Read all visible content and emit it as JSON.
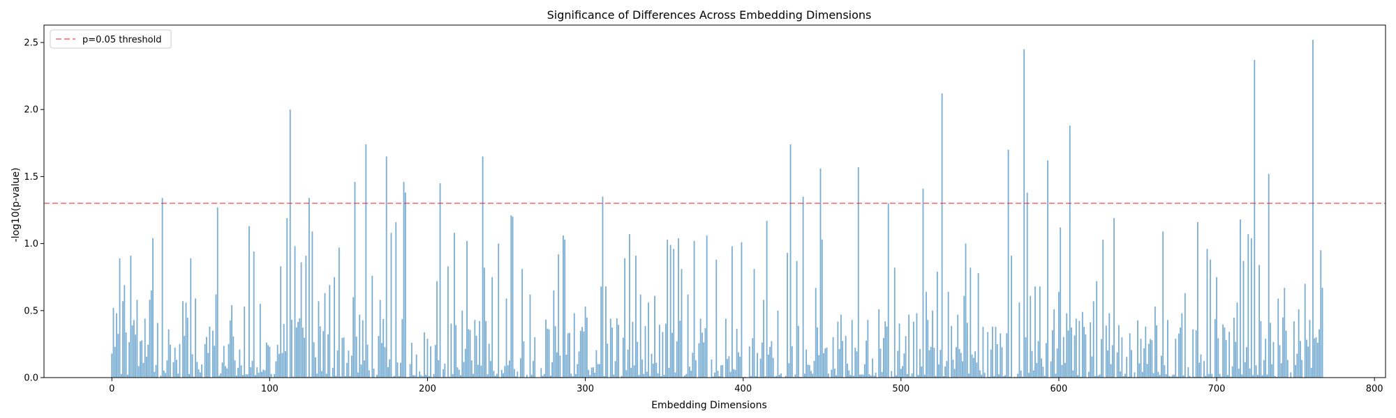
{
  "chart_data": {
    "type": "bar",
    "title": "Significance of Differences Across Embedding Dimensions",
    "xlabel": "Embedding Dimensions",
    "ylabel": "-log10(p-value)",
    "xlim": [
      -43,
      807
    ],
    "ylim": [
      0,
      2.63
    ],
    "xticks": [
      0,
      100,
      200,
      300,
      400,
      500,
      600,
      700,
      800
    ],
    "yticks": [
      0.0,
      0.5,
      1.0,
      1.5,
      2.0,
      2.5
    ],
    "bar_color": "#1f77b4",
    "bar_alpha": 0.6,
    "threshold": {
      "value": 1.30103,
      "label": "p=0.05 threshold",
      "color": "#ff0000",
      "alpha": 0.6,
      "style": "dashed"
    },
    "legend_position": "upper-left",
    "peaks": [
      [
        0,
        0.18
      ],
      [
        1,
        0.52
      ],
      [
        3,
        0.48
      ],
      [
        5,
        0.89
      ],
      [
        7,
        0.57
      ],
      [
        8,
        0.69
      ],
      [
        12,
        0.91
      ],
      [
        14,
        0.43
      ],
      [
        16,
        0.58
      ],
      [
        18,
        0.27
      ],
      [
        21,
        0.44
      ],
      [
        24,
        0.58
      ],
      [
        25,
        0.65
      ],
      [
        26,
        1.04
      ],
      [
        32,
        1.34
      ],
      [
        36,
        0.36
      ],
      [
        43,
        0.25
      ],
      [
        45,
        0.57
      ],
      [
        47,
        0.56
      ],
      [
        50,
        0.89
      ],
      [
        53,
        0.59
      ],
      [
        62,
        0.38
      ],
      [
        64,
        0.35
      ],
      [
        66,
        0.62
      ],
      [
        67,
        1.27
      ],
      [
        74,
        0.25
      ],
      [
        76,
        0.54
      ],
      [
        81,
        0.21
      ],
      [
        84,
        0.53
      ],
      [
        87,
        1.13
      ],
      [
        90,
        0.94
      ],
      [
        94,
        0.55
      ],
      [
        100,
        0.23
      ],
      [
        107,
        0.83
      ],
      [
        111,
        1.19
      ],
      [
        113,
        2.0
      ],
      [
        116,
        0.98
      ],
      [
        120,
        0.86
      ],
      [
        123,
        0.91
      ],
      [
        125,
        1.34
      ],
      [
        127,
        1.09
      ],
      [
        131,
        0.57
      ],
      [
        135,
        0.63
      ],
      [
        138,
        0.69
      ],
      [
        141,
        0.75
      ],
      [
        144,
        0.97
      ],
      [
        147,
        0.3
      ],
      [
        153,
        0.6
      ],
      [
        154,
        1.46
      ],
      [
        157,
        0.47
      ],
      [
        161,
        1.74
      ],
      [
        165,
        0.76
      ],
      [
        170,
        0.58
      ],
      [
        174,
        1.65
      ],
      [
        177,
        1.08
      ],
      [
        180,
        1.16
      ],
      [
        185,
        1.46
      ],
      [
        186,
        1.38
      ],
      [
        190,
        0.26
      ],
      [
        200,
        0.29
      ],
      [
        206,
        0.72
      ],
      [
        208,
        1.45
      ],
      [
        213,
        0.83
      ],
      [
        217,
        1.08
      ],
      [
        222,
        0.5
      ],
      [
        225,
        1.02
      ],
      [
        230,
        0.43
      ],
      [
        235,
        1.65
      ],
      [
        236,
        0.82
      ],
      [
        241,
        0.75
      ],
      [
        245,
        1.0
      ],
      [
        250,
        0.59
      ],
      [
        253,
        1.21
      ],
      [
        254,
        1.2
      ],
      [
        260,
        0.81
      ],
      [
        265,
        0.62
      ],
      [
        280,
        0.65
      ],
      [
        283,
        0.92
      ],
      [
        286,
        1.06
      ],
      [
        287,
        1.03
      ],
      [
        293,
        0.48
      ],
      [
        300,
        0.53
      ],
      [
        310,
        0.68
      ],
      [
        311,
        1.35
      ],
      [
        313,
        0.68
      ],
      [
        316,
        0.44
      ],
      [
        325,
        0.89
      ],
      [
        328,
        1.07
      ],
      [
        332,
        0.91
      ],
      [
        335,
        0.62
      ],
      [
        340,
        0.56
      ],
      [
        344,
        0.61
      ],
      [
        352,
        1.03
      ],
      [
        354,
        0.99
      ],
      [
        356,
        0.96
      ],
      [
        359,
        1.04
      ],
      [
        361,
        0.81
      ],
      [
        365,
        0.62
      ],
      [
        369,
        1.02
      ],
      [
        373,
        0.44
      ],
      [
        377,
        1.06
      ],
      [
        383,
        0.88
      ],
      [
        389,
        0.44
      ],
      [
        393,
        0.98
      ],
      [
        399,
        1.01
      ],
      [
        407,
        0.81
      ],
      [
        413,
        0.58
      ],
      [
        415,
        1.17
      ],
      [
        422,
        0.5
      ],
      [
        428,
        0.93
      ],
      [
        430,
        1.74
      ],
      [
        434,
        0.87
      ],
      [
        438,
        1.35
      ],
      [
        446,
        0.67
      ],
      [
        449,
        1.56
      ],
      [
        450,
        1.03
      ],
      [
        462,
        0.47
      ],
      [
        469,
        0.43
      ],
      [
        473,
        1.57
      ],
      [
        479,
        0.43
      ],
      [
        486,
        0.51
      ],
      [
        492,
        1.3
      ],
      [
        496,
        0.82
      ],
      [
        505,
        0.47
      ],
      [
        510,
        0.48
      ],
      [
        514,
        1.41
      ],
      [
        516,
        0.64
      ],
      [
        520,
        0.5
      ],
      [
        523,
        0.79
      ],
      [
        526,
        2.12
      ],
      [
        530,
        0.64
      ],
      [
        536,
        0.47
      ],
      [
        540,
        0.61
      ],
      [
        541,
        1.0
      ],
      [
        544,
        0.82
      ],
      [
        549,
        0.78
      ],
      [
        555,
        0.34
      ],
      [
        558,
        0.38
      ],
      [
        563,
        0.33
      ],
      [
        568,
        1.7
      ],
      [
        570,
        0.91
      ],
      [
        575,
        0.56
      ],
      [
        578,
        2.45
      ],
      [
        580,
        1.38
      ],
      [
        582,
        0.61
      ],
      [
        585,
        0.68
      ],
      [
        588,
        0.68
      ],
      [
        593,
        1.62
      ],
      [
        597,
        0.51
      ],
      [
        600,
        0.64
      ],
      [
        601,
        1.12
      ],
      [
        605,
        0.48
      ],
      [
        607,
        1.88
      ],
      [
        611,
        0.44
      ],
      [
        615,
        0.49
      ],
      [
        622,
        0.57
      ],
      [
        624,
        0.72
      ],
      [
        628,
        1.03
      ],
      [
        632,
        0.48
      ],
      [
        635,
        1.19
      ],
      [
        640,
        0.3
      ],
      [
        645,
        0.33
      ],
      [
        652,
        0.29
      ],
      [
        655,
        0.38
      ],
      [
        661,
        0.53
      ],
      [
        666,
        1.09
      ],
      [
        669,
        0.43
      ],
      [
        674,
        0.29
      ],
      [
        678,
        0.48
      ],
      [
        680,
        0.63
      ],
      [
        685,
        0.36
      ],
      [
        688,
        1.16
      ],
      [
        694,
        0.96
      ],
      [
        696,
        0.88
      ],
      [
        700,
        0.75
      ],
      [
        706,
        0.28
      ],
      [
        713,
        0.56
      ],
      [
        715,
        1.18
      ],
      [
        717,
        0.87
      ],
      [
        720,
        1.07
      ],
      [
        722,
        1.04
      ],
      [
        724,
        2.37
      ],
      [
        727,
        0.84
      ],
      [
        731,
        0.29
      ],
      [
        733,
        1.52
      ],
      [
        739,
        0.59
      ],
      [
        743,
        0.67
      ],
      [
        749,
        0.42
      ],
      [
        752,
        0.51
      ],
      [
        756,
        0.7
      ],
      [
        759,
        0.43
      ],
      [
        761,
        2.52
      ],
      [
        764,
        0.26
      ],
      [
        765,
        0.36
      ],
      [
        766,
        0.95
      ],
      [
        767,
        0.67
      ]
    ]
  }
}
